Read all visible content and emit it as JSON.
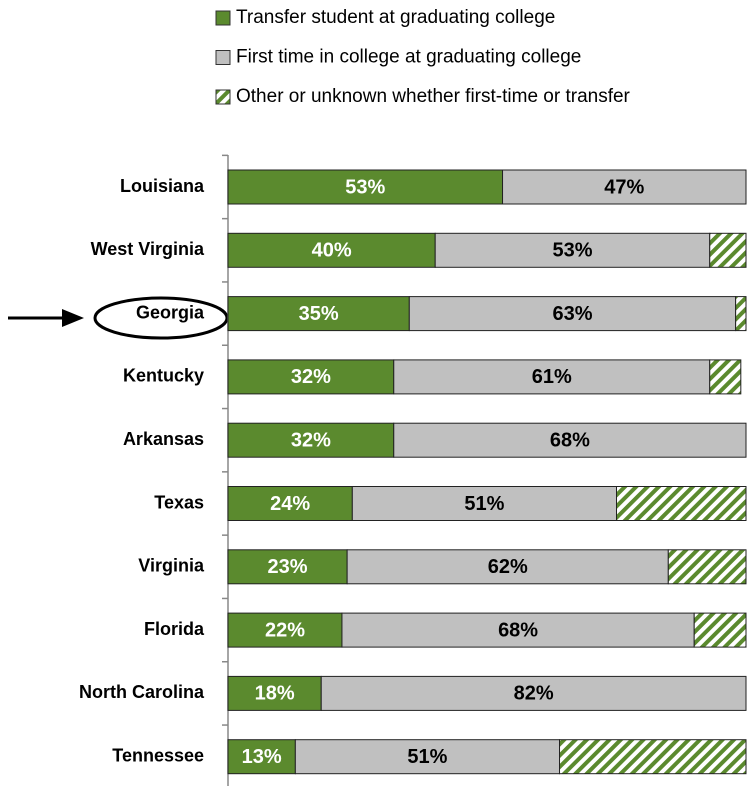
{
  "chart_data": {
    "type": "stacked-bar",
    "orientation": "horizontal",
    "categories": [
      "Louisiana",
      "West Virginia",
      "Georgia",
      "Kentucky",
      "Arkansas",
      "Texas",
      "Virginia",
      "Florida",
      "North Carolina",
      "Tennessee"
    ],
    "xlim": [
      0,
      100
    ],
    "legend": "top",
    "series": [
      {
        "name": "Transfer student at graduating college",
        "color": "#5b8a2e",
        "label_color": "#ffffff",
        "values": [
          53,
          40,
          35,
          32,
          32,
          24,
          23,
          22,
          18,
          13
        ],
        "value_labels": [
          "53%",
          "40%",
          "35%",
          "32%",
          "32%",
          "24%",
          "23%",
          "22%",
          "18%",
          "13%"
        ]
      },
      {
        "name": "First time in college at graduating college",
        "color": "#c0c0c0",
        "label_color": "#000000",
        "values": [
          47,
          53,
          63,
          61,
          68,
          51,
          62,
          68,
          82,
          51
        ],
        "value_labels": [
          "47%",
          "53%",
          "63%",
          "61%",
          "68%",
          "51%",
          "62%",
          "68%",
          "82%",
          "51%"
        ]
      },
      {
        "name": "Other or unknown whether first-time or transfer",
        "color": "#5b8a2e",
        "pattern": "hatch",
        "values": [
          0,
          7,
          2,
          6,
          0,
          25,
          15,
          10,
          0,
          36
        ]
      }
    ]
  }
}
